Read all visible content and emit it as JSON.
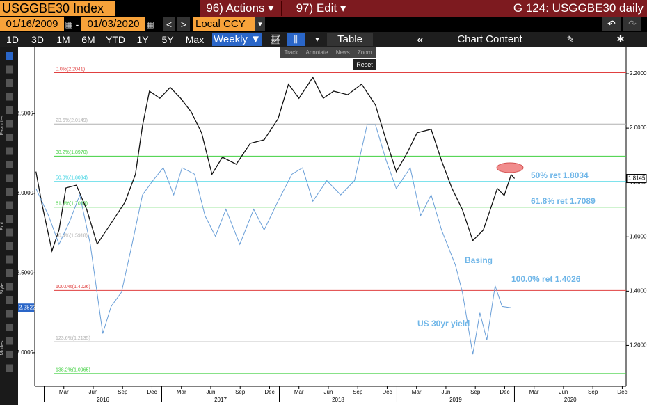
{
  "header": {
    "ticker": "USGGBE30 Index",
    "actions": "96) Actions ▾",
    "edit": "97) Edit ▾",
    "title": "G 124: USGGBE30 daily"
  },
  "controls": {
    "start_date": "01/16/2009",
    "dash": "-",
    "end_date": "01/03/2020",
    "prev": "<",
    "next": ">",
    "currency": "Local CCY",
    "dropdown": "▾"
  },
  "periods": [
    "1D",
    "3D",
    "1M",
    "6M",
    "YTD",
    "1Y",
    "5Y",
    "Max"
  ],
  "toolbar": {
    "frequency": "Weekly ▼",
    "more": "▾",
    "table": "Table",
    "collapse": "«",
    "chart_content": "Chart Content"
  },
  "mini_toolbar": {
    "items": [
      "Track",
      "Annotate",
      "News",
      "Zoom"
    ],
    "reset": "Reset"
  },
  "sidebar": [
    "Favorites",
    "Edit",
    "Style",
    "Modes"
  ],
  "chart_data": {
    "type": "line",
    "xlim": [
      2015.92,
      2020.95
    ],
    "xticks": [
      {
        "value": 2016.167,
        "label": "Mar"
      },
      {
        "value": 2016.417,
        "label": "Jun"
      },
      {
        "value": 2016.667,
        "label": "Sep"
      },
      {
        "value": 2016.917,
        "label": "Dec"
      },
      {
        "value": 2017.167,
        "label": "Mar"
      },
      {
        "value": 2017.417,
        "label": "Jun"
      },
      {
        "value": 2017.667,
        "label": "Sep"
      },
      {
        "value": 2017.917,
        "label": "Dec"
      },
      {
        "value": 2018.167,
        "label": "Mar"
      },
      {
        "value": 2018.417,
        "label": "Jun"
      },
      {
        "value": 2018.667,
        "label": "Sep"
      },
      {
        "value": 2018.917,
        "label": "Dec"
      },
      {
        "value": 2019.167,
        "label": "Mar"
      },
      {
        "value": 2019.417,
        "label": "Jun"
      },
      {
        "value": 2019.667,
        "label": "Sep"
      },
      {
        "value": 2019.917,
        "label": "Dec"
      },
      {
        "value": 2020.167,
        "label": "Mar"
      },
      {
        "value": 2020.417,
        "label": "Jun"
      },
      {
        "value": 2020.667,
        "label": "Sep"
      },
      {
        "value": 2020.917,
        "label": "Dec"
      }
    ],
    "year_labels": [
      2016,
      2017,
      2018,
      2019,
      2020
    ],
    "ylim": [
      1.79,
      3.92
    ],
    "yticks": [
      {
        "value": 2.0,
        "label": "2.0000"
      },
      {
        "value": 2.5,
        "label": "2.5000"
      },
      {
        "value": 3.0,
        "label": "3.0000"
      },
      {
        "value": 3.5,
        "label": "3.5000"
      }
    ],
    "y2lim": [
      1.05,
      2.3
    ],
    "y2ticks": [
      {
        "value": 1.2,
        "label": "1.2000"
      },
      {
        "value": 1.4,
        "label": "1.4000"
      },
      {
        "value": 1.6,
        "label": "1.6000"
      },
      {
        "value": 1.8,
        "label": "1.8000"
      },
      {
        "value": 2.0,
        "label": "2.0000"
      },
      {
        "value": 2.2,
        "label": "2.2000"
      }
    ],
    "series": [
      {
        "name": "USGGBE30",
        "color": "#111111",
        "axis": "y2",
        "last_label": "1.8145",
        "x": [
          2015.93,
          2015.978,
          2016.066,
          2016.126,
          2016.185,
          2016.274,
          2016.362,
          2016.451,
          2016.569,
          2016.687,
          2016.776,
          2016.836,
          2016.895,
          2016.984,
          2017.072,
          2017.161,
          2017.25,
          2017.339,
          2017.427,
          2017.516,
          2017.634,
          2017.753,
          2017.871,
          2017.989,
          2018.078,
          2018.167,
          2018.285,
          2018.374,
          2018.463,
          2018.581,
          2018.7,
          2018.818,
          2018.907,
          2018.995,
          2019.084,
          2019.172,
          2019.291,
          2019.38,
          2019.469,
          2019.557,
          2019.646,
          2019.735,
          2019.794,
          2019.854,
          2019.913,
          2019.972,
          2020.001
        ],
        "values": [
          1.84,
          1.727,
          1.548,
          1.625,
          1.78,
          1.79,
          1.7,
          1.573,
          1.65,
          1.727,
          1.83,
          2.008,
          2.136,
          2.11,
          2.15,
          2.11,
          2.06,
          1.983,
          1.83,
          1.893,
          1.867,
          1.944,
          1.957,
          2.034,
          2.162,
          2.11,
          2.187,
          2.11,
          2.136,
          2.123,
          2.162,
          2.085,
          1.957,
          1.84,
          1.906,
          1.983,
          1.996,
          1.88,
          1.778,
          1.7,
          1.586,
          1.625,
          1.7,
          1.778,
          1.752,
          1.829,
          1.8145
        ]
      },
      {
        "name": "US 30yr yield",
        "color": "#6a9fd8",
        "axis": "y",
        "last_label": "2.2822",
        "x": [
          2015.93,
          2016.037,
          2016.126,
          2016.214,
          2016.303,
          2016.392,
          2016.498,
          2016.569,
          2016.658,
          2016.747,
          2016.836,
          2016.925,
          2017.013,
          2017.102,
          2017.173,
          2017.279,
          2017.368,
          2017.457,
          2017.546,
          2017.664,
          2017.782,
          2017.871,
          2017.989,
          2018.108,
          2018.197,
          2018.285,
          2018.404,
          2018.522,
          2018.64,
          2018.747,
          2018.818,
          2018.907,
          2018.995,
          2019.114,
          2019.202,
          2019.291,
          2019.38,
          2019.498,
          2019.557,
          2019.646,
          2019.706,
          2019.765,
          2019.836,
          2019.895,
          2019.972
        ],
        "values": [
          3.03,
          2.86,
          2.68,
          2.82,
          2.99,
          2.68,
          2.12,
          2.29,
          2.38,
          2.68,
          2.99,
          3.08,
          3.16,
          2.99,
          3.16,
          3.12,
          2.86,
          2.73,
          2.9,
          2.68,
          2.9,
          2.77,
          2.95,
          3.12,
          3.16,
          2.95,
          3.08,
          2.99,
          3.08,
          3.43,
          3.43,
          3.21,
          3.03,
          3.16,
          2.86,
          2.99,
          2.77,
          2.55,
          2.38,
          1.99,
          2.25,
          2.08,
          2.42,
          2.29,
          2.2822
        ]
      }
    ],
    "fib_levels": [
      {
        "label": "0.0%(2.2041)",
        "value": 2.2041,
        "color": "#e04040"
      },
      {
        "label": "23.6%(2.0149)",
        "value": 2.0149,
        "color": "#b0b0b0"
      },
      {
        "label": "38.2%(1.8970)",
        "value": 1.897,
        "color": "#40d040"
      },
      {
        "label": "50.0%(1.8034)",
        "value": 1.8034,
        "color": "#30d0e0"
      },
      {
        "label": "61.8%(1.7089)",
        "value": 1.7089,
        "color": "#40d040"
      },
      {
        "label": "76.4%(1.5918)",
        "value": 1.5918,
        "color": "#b0b0b0"
      },
      {
        "label": "100.0%(1.4026)",
        "value": 1.4026,
        "color": "#e04040"
      },
      {
        "label": "123.6%(1.2135)",
        "value": 1.2135,
        "color": "#b0b0b0"
      },
      {
        "label": "138.2%(1.0965)",
        "value": 1.0965,
        "color": "#40d040"
      }
    ],
    "annotations": [
      "50% ret 1.8034",
      "61.8% ret 1.7089",
      "100.0% ret 1.4026",
      "Basing",
      "US 30yr yield"
    ]
  }
}
